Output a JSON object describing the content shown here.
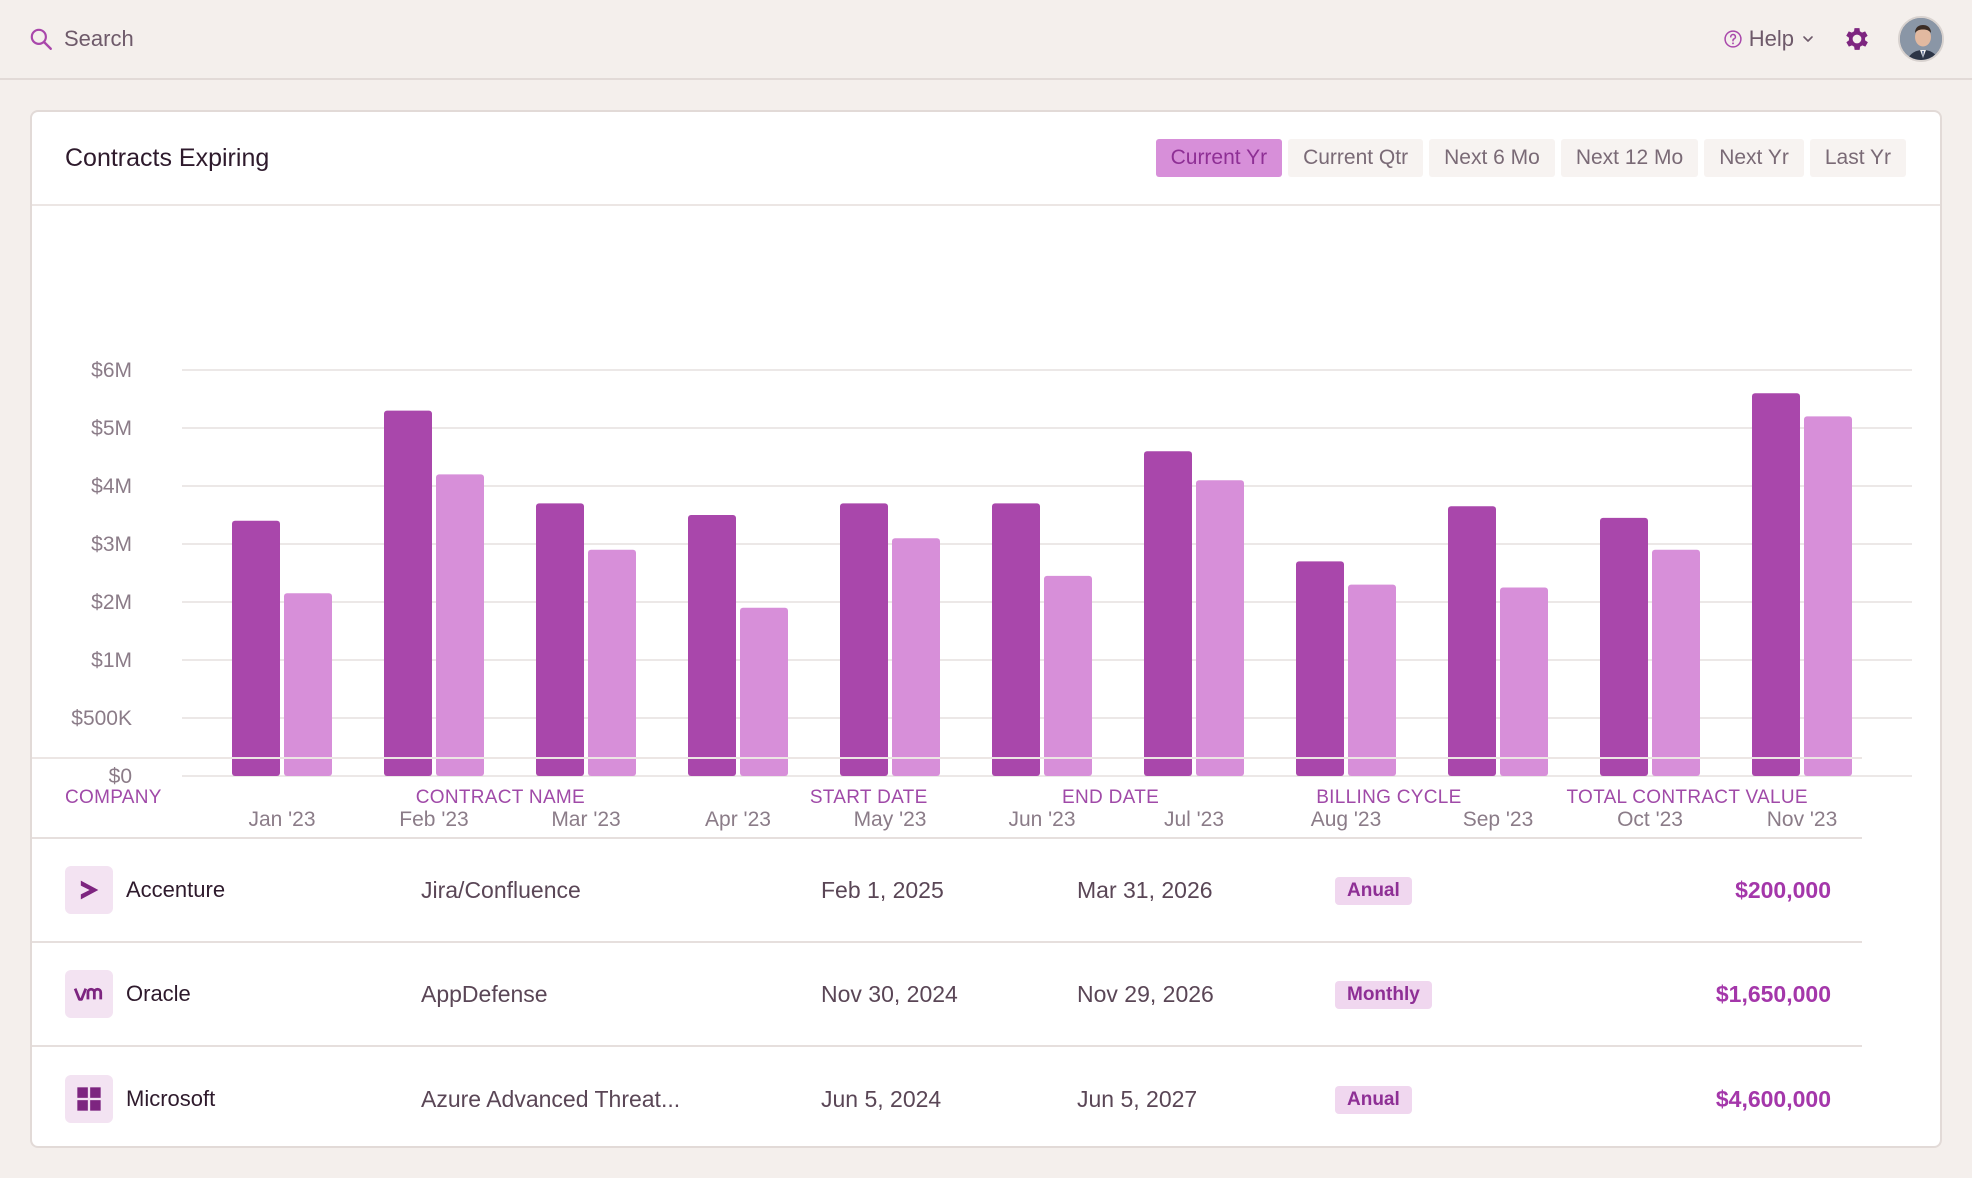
{
  "topbar": {
    "search_placeholder": "Search",
    "help_label": "Help",
    "icons": [
      "search-icon",
      "help-icon",
      "chevron-down-icon",
      "gear-icon",
      "avatar"
    ]
  },
  "card": {
    "title": "Contracts Expiring",
    "filters": [
      "Current Yr",
      "Current Qtr",
      "Next 6 Mo",
      "Next 12 Mo",
      "Next Yr",
      "Last Yr"
    ],
    "active_filter": "Current Yr"
  },
  "colors": {
    "series_1": "#a947ab",
    "series_2": "#d78fd9",
    "accent": "#a437aa"
  },
  "chart_data": {
    "type": "bar",
    "categories": [
      "Jan '23",
      "Feb '23",
      "Mar '23",
      "Apr '23",
      "May '23",
      "Jun '23",
      "Jul '23",
      "Aug '23",
      "Sep '23",
      "Oct '23",
      "Nov '23"
    ],
    "y_ticks": [
      "$0",
      "$500K",
      "$1M",
      "$2M",
      "$3M",
      "$4M",
      "$5M",
      "$6M"
    ],
    "series": [
      {
        "values": [
          3.4,
          5.3,
          3.7,
          3.5,
          3.7,
          3.7,
          4.6,
          2.7,
          3.65,
          3.45,
          5.6
        ]
      },
      {
        "values": [
          2.15,
          4.2,
          2.9,
          1.9,
          3.1,
          2.45,
          4.1,
          2.3,
          2.25,
          2.9,
          5.2
        ]
      }
    ],
    "ylim": [
      0,
      6
    ],
    "grid": true
  },
  "table": {
    "headers": [
      "COMPANY",
      "CONTRACT NAME",
      "START DATE",
      "END DATE",
      "BILLING CYCLE",
      "TOTAL CONTRACT VALUE"
    ],
    "rows": [
      {
        "company": "Accenture",
        "logo": "accenture-icon",
        "contract": "Jira/Confluence",
        "start": "Feb 1, 2025",
        "end": "Mar 31, 2026",
        "billing": "Anual",
        "value": "$200,000"
      },
      {
        "company": "Oracle",
        "logo": "vm-icon",
        "contract": "AppDefense",
        "start": "Nov 30, 2024",
        "end": "Nov 29, 2026",
        "billing": "Monthly",
        "value": "$1,650,000"
      },
      {
        "company": "Microsoft",
        "logo": "windows-icon",
        "contract": "Azure Advanced Threat...",
        "start": "Jun 5, 2024",
        "end": "Jun 5, 2027",
        "billing": "Anual",
        "value": "$4,600,000"
      }
    ]
  }
}
